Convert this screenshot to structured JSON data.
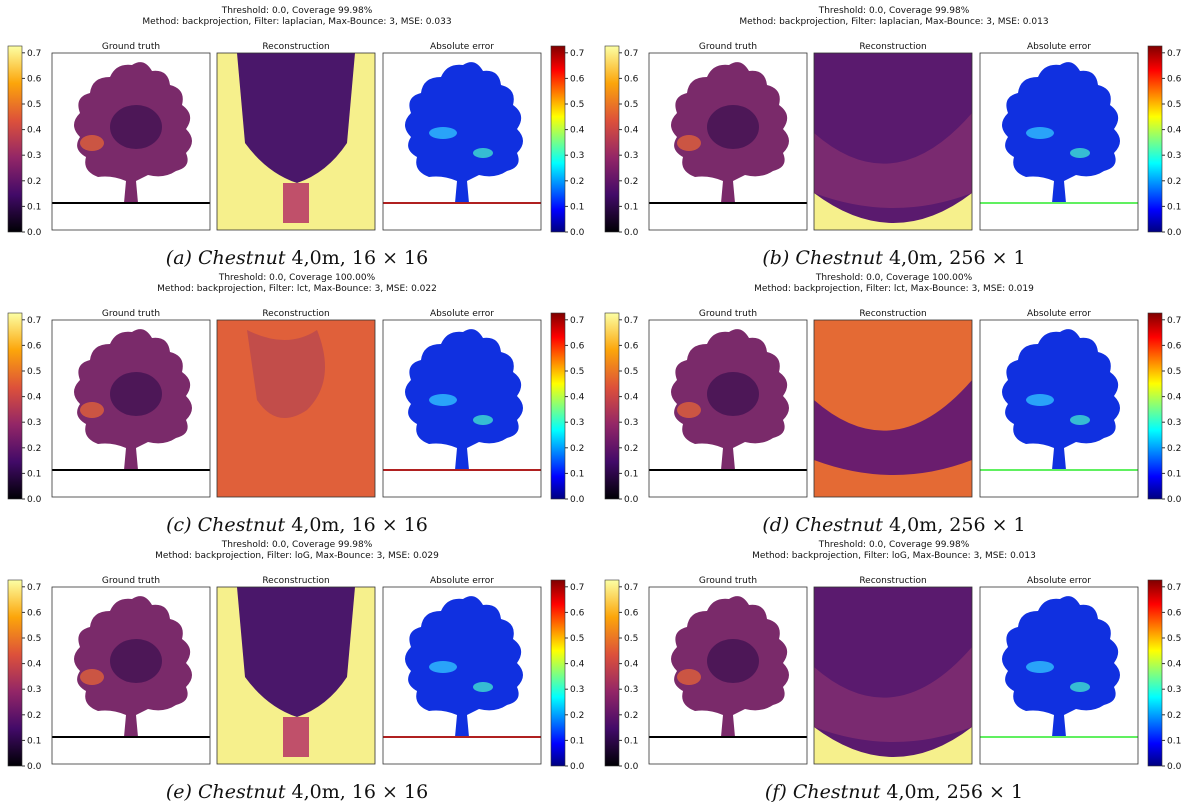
{
  "subplot_titles": [
    "Ground truth",
    "Reconstruction",
    "Absolute error"
  ],
  "colorbar_ticks": [
    "0.0",
    "0.1",
    "0.2",
    "0.3",
    "0.4",
    "0.5",
    "0.6",
    "0.7"
  ],
  "panels": [
    {
      "threshold_line": "Threshold: 0.0, Coverage 99.98%",
      "method_line": "Method: backprojection, Filter: laplacian, Max-Bounce: 3, MSE: 0.033",
      "caption": {
        "label": "(a)",
        "name": "Chestnut",
        "detail": "4,0m, 16 × 16"
      }
    },
    {
      "threshold_line": "Threshold: 0.0, Coverage 99.98%",
      "method_line": "Method: backprojection, Filter: laplacian, Max-Bounce: 3, MSE: 0.013",
      "caption": {
        "label": "(b)",
        "name": "Chestnut",
        "detail": "4,0m, 256 × 1"
      }
    },
    {
      "threshold_line": "Threshold: 0.0, Coverage 100.00%",
      "method_line": "Method: backprojection, Filter: lct, Max-Bounce: 3, MSE: 0.022",
      "caption": {
        "label": "(c)",
        "name": "Chestnut",
        "detail": "4,0m, 16 × 16"
      }
    },
    {
      "threshold_line": "Threshold: 0.0, Coverage 100.00%",
      "method_line": "Method: backprojection, Filter: lct, Max-Bounce: 3, MSE: 0.019",
      "caption": {
        "label": "(d)",
        "name": "Chestnut",
        "detail": "4,0m, 256 × 1"
      }
    },
    {
      "threshold_line": "Threshold: 0.0, Coverage 99.98%",
      "method_line": "Method: backprojection, Filter: loG, Max-Bounce: 3, MSE: 0.029",
      "caption": {
        "label": "(e)",
        "name": "Chestnut",
        "detail": "4,0m, 16 × 16"
      }
    },
    {
      "threshold_line": "Threshold: 0.0, Coverage 99.98%",
      "method_line": "Method: backprojection, Filter: loG, Max-Bounce: 3, MSE: 0.013",
      "caption": {
        "label": "(f)",
        "name": "Chestnut",
        "detail": "4,0m, 256 × 1"
      }
    }
  ]
}
